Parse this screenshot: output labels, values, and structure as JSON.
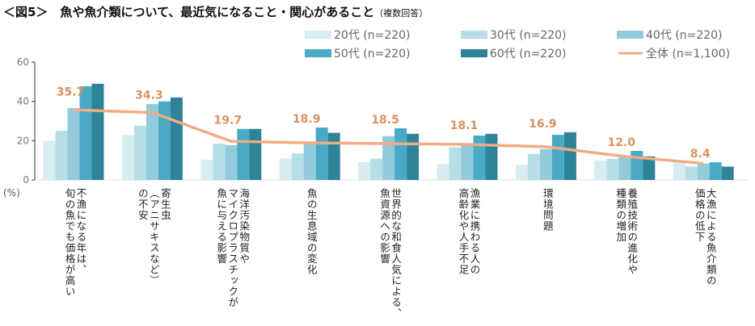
{
  "title": "＜図5＞　魚や魚介類について、最近気になること・関心があること",
  "subtitle": "（複数回答）",
  "chart_data": {
    "type": "bar",
    "ylabel": "(%)",
    "ylim": [
      0,
      60
    ],
    "yticks": [
      0,
      20,
      40,
      60
    ],
    "categories": [
      [
        "不漁になる年は、",
        "旬の魚でも価格が高い"
      ],
      [
        "寄生虫",
        "（アニサキスなど）",
        "の不安"
      ],
      [
        "海洋汚染物質や",
        "マイクロプラスチックが",
        "魚に与える影響"
      ],
      [
        "魚の生息域の変化"
      ],
      [
        "世界的な和食人気による、",
        "魚資源への影響"
      ],
      [
        "漁業に携わる人の",
        "高齢化や人手不足"
      ],
      [
        "環境問題"
      ],
      [
        "養殖技術の進化や",
        "種類の増加"
      ],
      [
        "大漁による魚介類の",
        "価格の低下"
      ]
    ],
    "series": [
      {
        "name": "20代 (n=220)",
        "color": "#d8edf2",
        "values": [
          20,
          23,
          10.3,
          11,
          9,
          8,
          7.8,
          9.9,
          8.8
        ]
      },
      {
        "name": "30代 (n=220)",
        "color": "#b6dee7",
        "values": [
          25,
          27.6,
          18.5,
          13.5,
          10.8,
          16.6,
          13.2,
          10.7,
          6.8
        ]
      },
      {
        "name": "40代 (n=220)",
        "color": "#93cbdc",
        "values": [
          36.6,
          38.7,
          17.7,
          19,
          22.3,
          18.5,
          15.7,
          11.5,
          8.4
        ]
      },
      {
        "name": "50代 (n=220)",
        "color": "#4aaac6",
        "values": [
          47.7,
          40,
          26,
          26.7,
          26.3,
          22.6,
          23,
          14.8,
          9
        ]
      },
      {
        "name": "60代 (n=220)",
        "color": "#2e8399",
        "values": [
          49,
          42,
          26,
          24,
          23.5,
          23.5,
          24.3,
          12,
          6.8
        ]
      }
    ],
    "line": {
      "name": "全体 (n=1,100)",
      "color": "#f3ab84",
      "label_color": "#d9925f",
      "values": [
        35.7,
        34.3,
        19.7,
        18.9,
        18.5,
        18.1,
        16.9,
        12.0,
        8.4
      ],
      "labels": [
        "35.7",
        "34.3",
        "19.7",
        "18.9",
        "18.5",
        "18.1",
        "16.9",
        "12.0",
        "8.4"
      ]
    },
    "legend": "top-right"
  }
}
